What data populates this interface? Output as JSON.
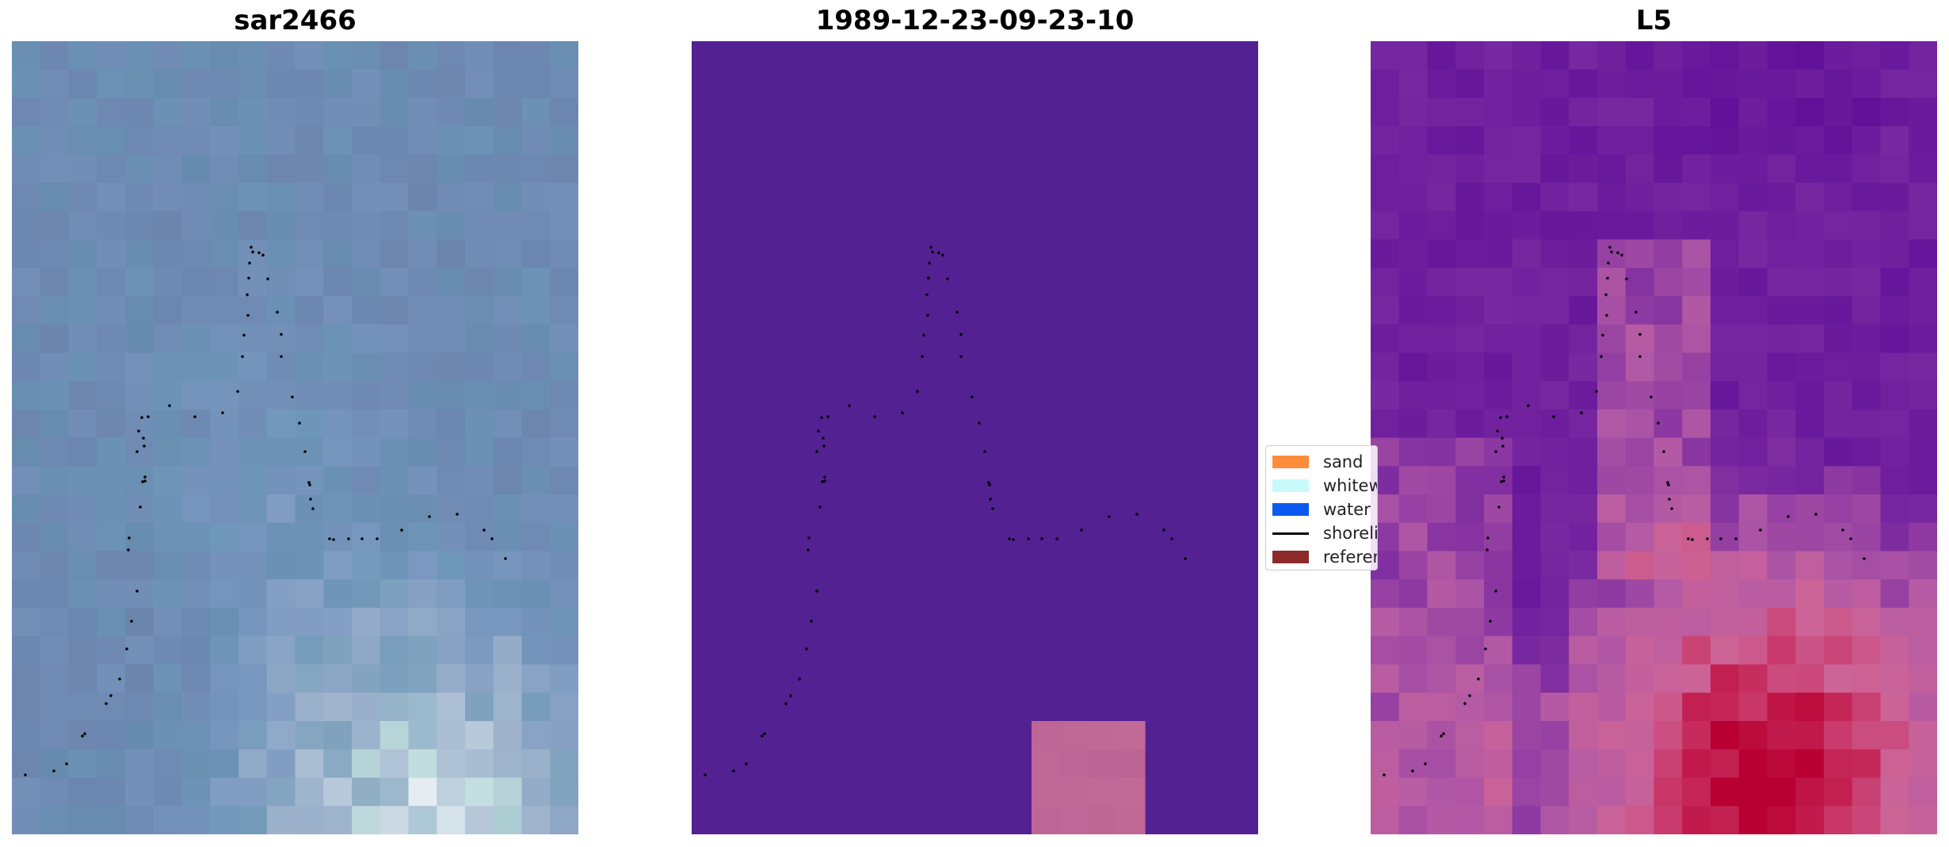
{
  "panels": [
    {
      "title": "sar2466"
    },
    {
      "title": "1989-12-23-09-23-10"
    },
    {
      "title": "L5"
    }
  ],
  "legend": {
    "items": [
      {
        "label": "sand",
        "color": "#ff8c3a"
      },
      {
        "label": "whitewater",
        "color": "#c8fafa"
      },
      {
        "label": "water",
        "color": "#0a5af0"
      },
      {
        "label": "shoreline",
        "color": "#000000"
      },
      {
        "label": "reference",
        "color": "#8c2a2a"
      }
    ]
  },
  "colors": {
    "classification_water_region": "#542193",
    "classification_sand_patch": "#bb6393",
    "shoreline_dots": "#000000"
  }
}
